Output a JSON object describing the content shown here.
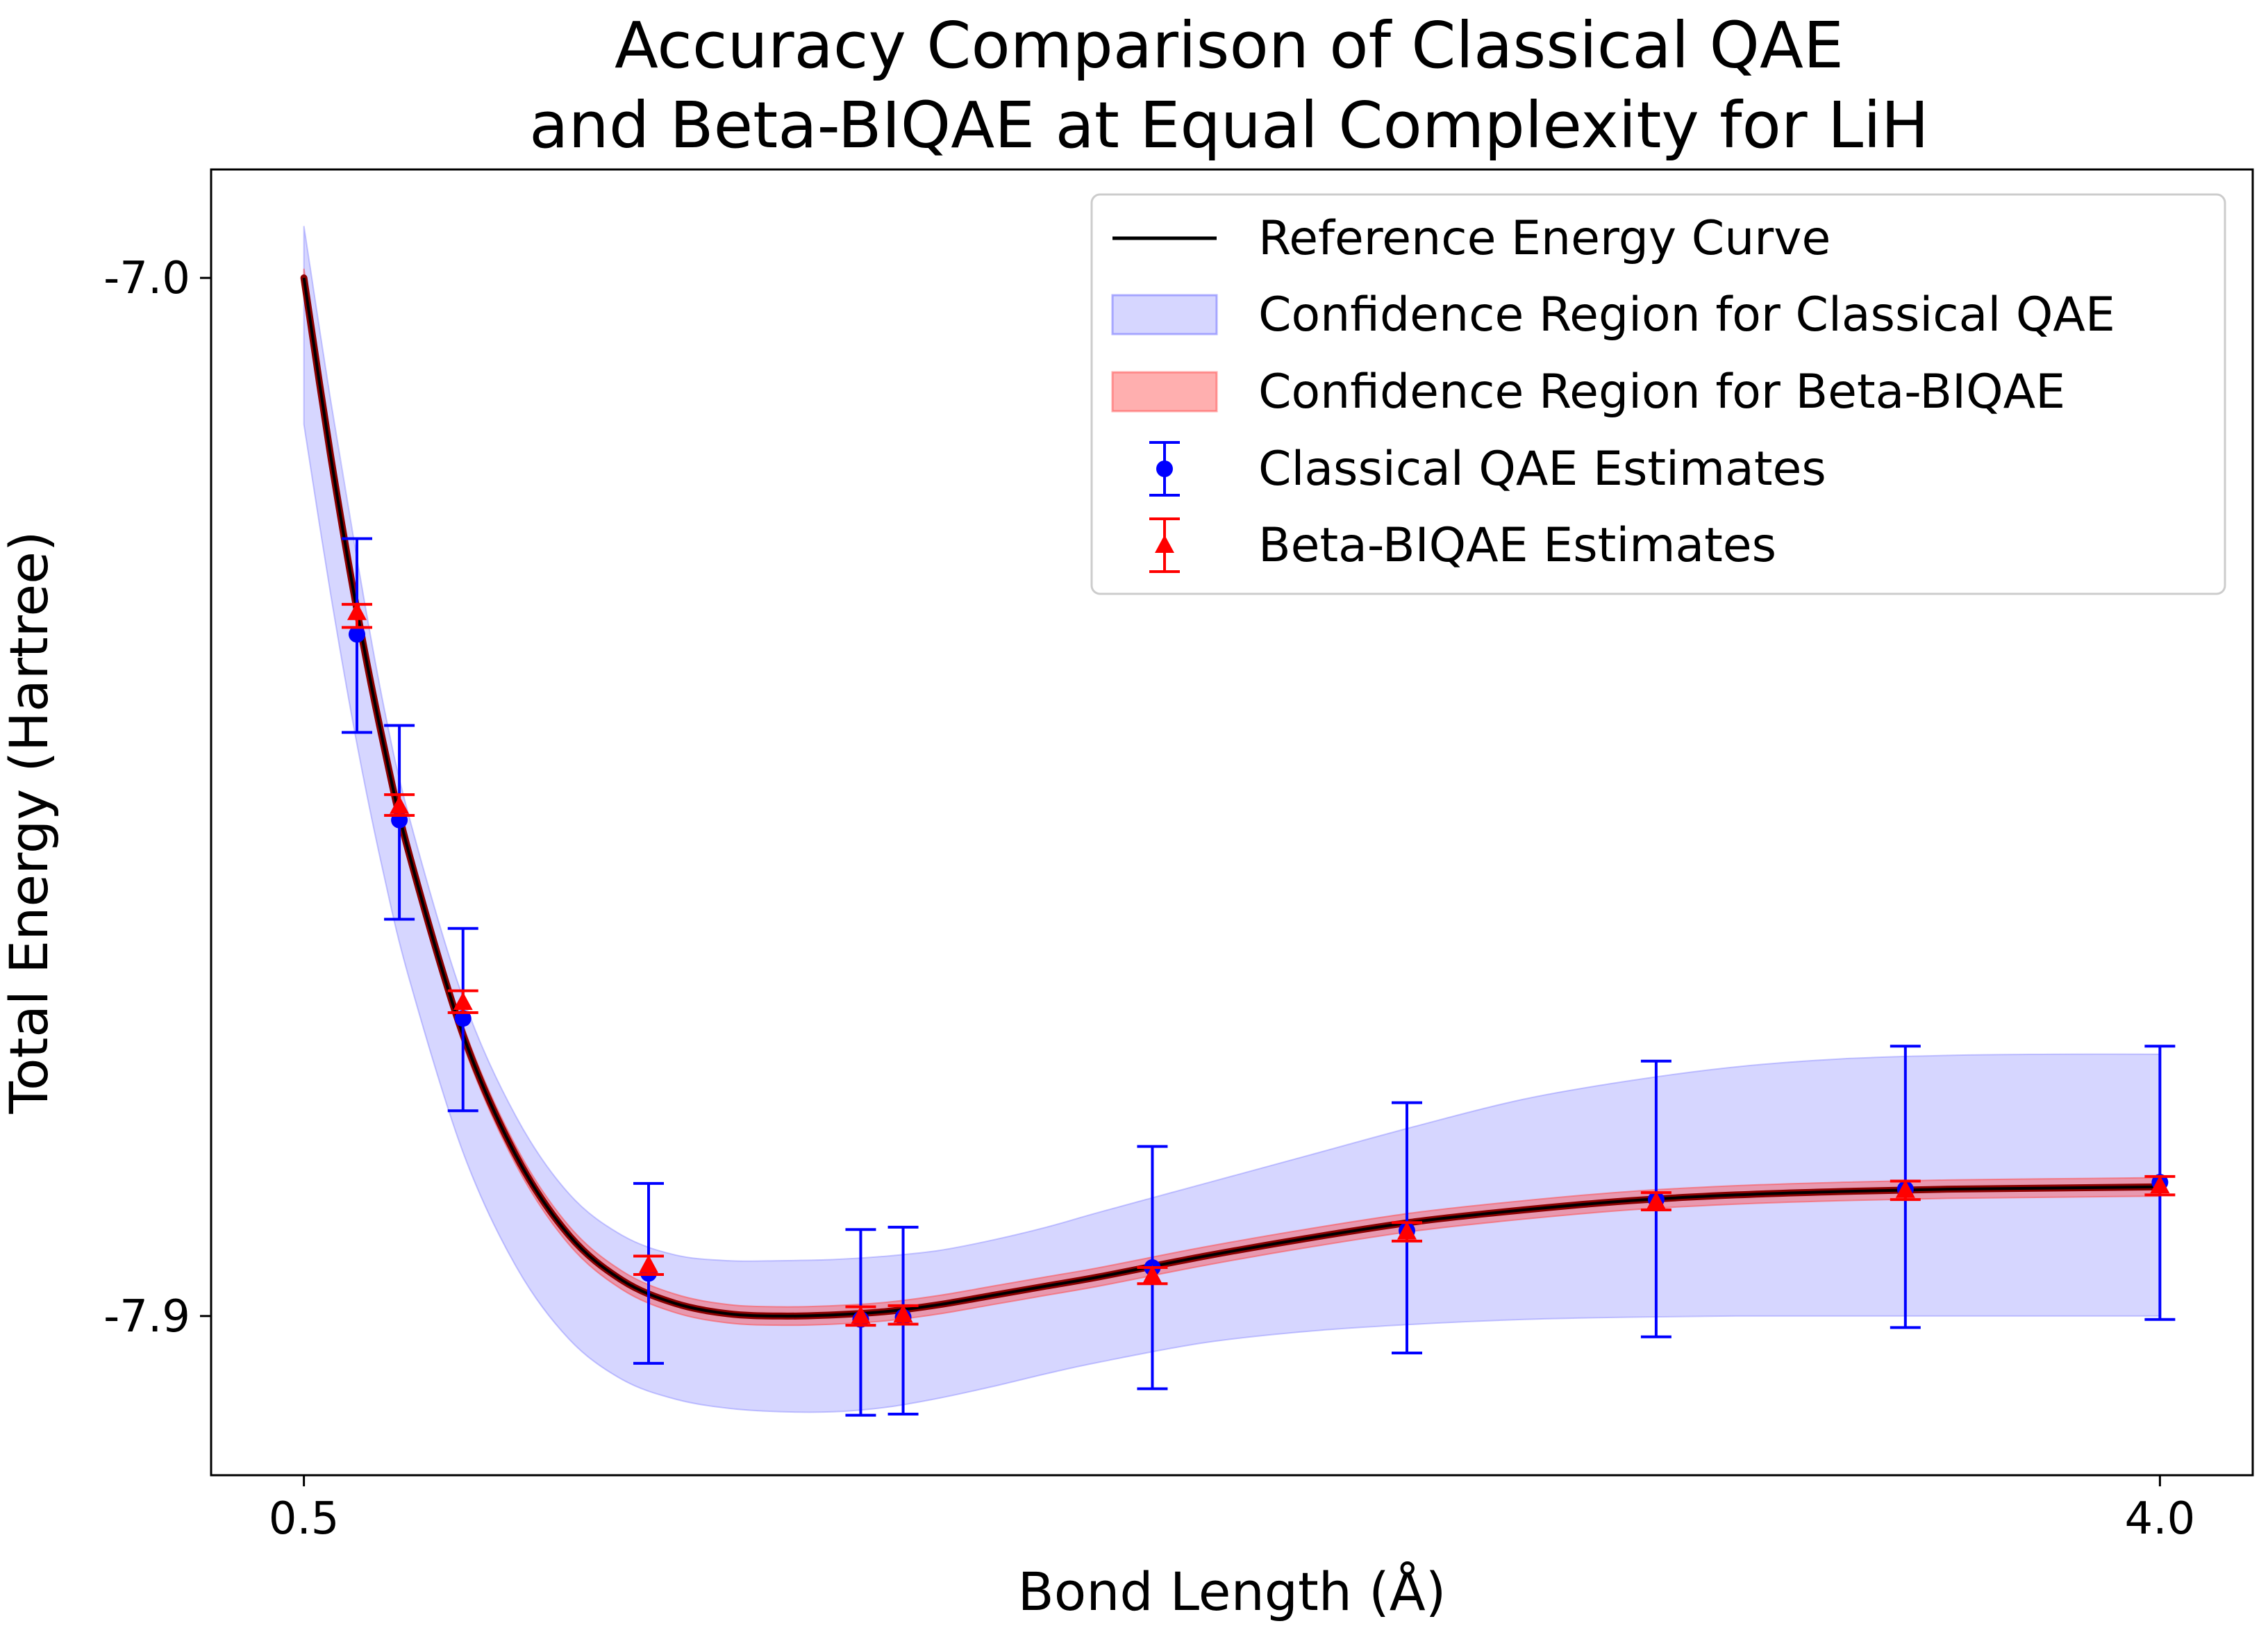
{
  "chart_data": {
    "type": "line",
    "title_line1": "Accuracy Comparison of Classical QAE",
    "title_line2": "and Beta-BIQAE at Equal Complexity for LiH",
    "xlabel": "Bond Length (Å)",
    "ylabel": "Total Energy (Hartree)",
    "xlim": [
      0.325,
      4.175
    ],
    "ylim": [
      -8.038,
      -6.906
    ],
    "xticks": [
      {
        "value": 0.5,
        "label": "0.5"
      },
      {
        "value": 4.0,
        "label": "4.0"
      }
    ],
    "yticks": [
      {
        "value": -7.0,
        "label": "-7.0"
      },
      {
        "value": -7.9,
        "label": "-7.9"
      }
    ],
    "grid": false,
    "legend_position": "top-right",
    "legend": [
      {
        "label": "Reference Energy Curve",
        "kind": "line",
        "color": "#000000"
      },
      {
        "label": "Confidence Region for Classical QAE",
        "kind": "band",
        "color": "#6666ff"
      },
      {
        "label": "Confidence Region for Beta-BIQAE",
        "kind": "band",
        "color": "#ff4d4d"
      },
      {
        "label": "Classical QAE Estimates",
        "kind": "errorbar-circle",
        "color": "#0000ff"
      },
      {
        "label": "Beta-BIQAE Estimates",
        "kind": "errorbar-triangle",
        "color": "#ff0000"
      }
    ],
    "reference_curve": {
      "x": [
        0.5,
        0.55,
        0.6,
        0.65,
        0.7,
        0.8,
        0.9,
        1.0,
        1.1,
        1.2,
        1.3,
        1.4,
        1.5,
        1.6,
        1.7,
        1.8,
        1.9,
        2.0,
        2.2,
        2.4,
        2.6,
        2.8,
        3.0,
        3.2,
        3.4,
        3.6,
        3.8,
        4.0
      ],
      "y": [
        -7.0,
        -7.153,
        -7.288,
        -7.404,
        -7.502,
        -7.656,
        -7.761,
        -7.83,
        -7.869,
        -7.889,
        -7.898,
        -7.9,
        -7.899,
        -7.896,
        -7.89,
        -7.882,
        -7.874,
        -7.866,
        -7.848,
        -7.832,
        -7.818,
        -7.808,
        -7.8,
        -7.795,
        -7.792,
        -7.79,
        -7.789,
        -7.788
      ]
    },
    "classical_band": {
      "x": [
        0.5,
        0.55,
        0.6,
        0.65,
        0.7,
        0.8,
        0.9,
        1.0,
        1.1,
        1.2,
        1.3,
        1.4,
        1.5,
        1.6,
        1.7,
        1.8,
        1.9,
        2.0,
        2.2,
        2.4,
        2.6,
        2.8,
        3.0,
        3.2,
        3.4,
        3.6,
        3.8,
        4.0
      ],
      "lower": [
        -7.127,
        -7.273,
        -7.404,
        -7.516,
        -7.61,
        -7.758,
        -7.857,
        -7.92,
        -7.955,
        -7.972,
        -7.98,
        -7.983,
        -7.983,
        -7.979,
        -7.971,
        -7.961,
        -7.95,
        -7.94,
        -7.923,
        -7.913,
        -7.907,
        -7.903,
        -7.901,
        -7.9,
        -7.9,
        -7.9,
        -7.9,
        -7.9
      ],
      "upper": [
        -6.955,
        -7.105,
        -7.243,
        -7.37,
        -7.47,
        -7.624,
        -7.727,
        -7.794,
        -7.83,
        -7.847,
        -7.852,
        -7.852,
        -7.851,
        -7.848,
        -7.843,
        -7.834,
        -7.823,
        -7.81,
        -7.785,
        -7.76,
        -7.735,
        -7.712,
        -7.696,
        -7.684,
        -7.677,
        -7.674,
        -7.673,
        -7.673
      ]
    },
    "beta_band_halfwidth": 0.008,
    "classical_estimates": [
      {
        "x": 0.6,
        "y": -7.309,
        "lower": -7.394,
        "upper": -7.226
      },
      {
        "x": 0.68,
        "y": -7.47,
        "lower": -7.556,
        "upper": -7.388
      },
      {
        "x": 0.8,
        "y": -7.642,
        "lower": -7.722,
        "upper": -7.564
      },
      {
        "x": 1.15,
        "y": -7.863,
        "lower": -7.941,
        "upper": -7.785
      },
      {
        "x": 1.55,
        "y": -7.903,
        "lower": -7.986,
        "upper": -7.825
      },
      {
        "x": 1.63,
        "y": -7.901,
        "lower": -7.985,
        "upper": -7.823
      },
      {
        "x": 2.1,
        "y": -7.858,
        "lower": -7.963,
        "upper": -7.753
      },
      {
        "x": 2.58,
        "y": -7.826,
        "lower": -7.932,
        "upper": -7.715
      },
      {
        "x": 3.05,
        "y": -7.799,
        "lower": -7.918,
        "upper": -7.679
      },
      {
        "x": 3.52,
        "y": -7.79,
        "lower": -7.91,
        "upper": -7.666
      },
      {
        "x": 4.0,
        "y": -7.784,
        "lower": -7.903,
        "upper": -7.666
      }
    ],
    "beta_estimates": [
      {
        "x": 0.6,
        "y": -7.29,
        "lower": -7.303,
        "upper": -7.283
      },
      {
        "x": 0.68,
        "y": -7.458,
        "lower": -7.466,
        "upper": -7.448
      },
      {
        "x": 0.8,
        "y": -7.628,
        "lower": -7.637,
        "upper": -7.618
      },
      {
        "x": 1.15,
        "y": -7.856,
        "lower": -7.864,
        "upper": -7.848
      },
      {
        "x": 1.55,
        "y": -7.9,
        "lower": -7.908,
        "upper": -7.892
      },
      {
        "x": 1.63,
        "y": -7.899,
        "lower": -7.907,
        "upper": -7.891
      },
      {
        "x": 2.1,
        "y": -7.865,
        "lower": -7.872,
        "upper": -7.858
      },
      {
        "x": 2.58,
        "y": -7.827,
        "lower": -7.835,
        "upper": -7.819
      },
      {
        "x": 3.05,
        "y": -7.801,
        "lower": -7.808,
        "upper": -7.793
      },
      {
        "x": 3.52,
        "y": -7.791,
        "lower": -7.799,
        "upper": -7.783
      },
      {
        "x": 4.0,
        "y": -7.787,
        "lower": -7.795,
        "upper": -7.779
      }
    ],
    "colors": {
      "reference": "#000000",
      "reference_overlay": "#8b0000",
      "classical_band": "#6666ff",
      "beta_band": "#ff4d4d",
      "classical_points": "#0000ff",
      "beta_points": "#ff0000"
    }
  }
}
